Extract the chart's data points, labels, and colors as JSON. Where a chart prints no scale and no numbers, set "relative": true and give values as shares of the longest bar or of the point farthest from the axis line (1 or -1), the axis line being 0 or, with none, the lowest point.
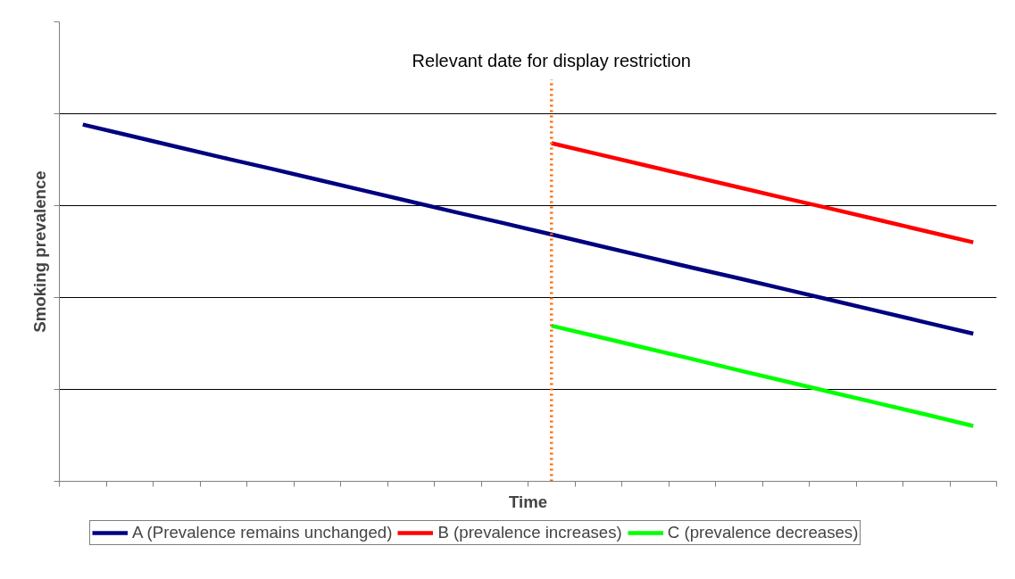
{
  "chart_data": {
    "type": "line",
    "relative": true,
    "xlabel": "Time",
    "ylabel": "Smoking prevalence",
    "categories": [
      null,
      null,
      null,
      null,
      null,
      null,
      null,
      null,
      null,
      null,
      null,
      null,
      null,
      null,
      null,
      null,
      null,
      null,
      null,
      null
    ],
    "series": [
      {
        "name": "A (Prevalence remains unchanged)",
        "color": "#000080",
        "values": [
          1,
          0.969,
          0.938,
          0.907,
          0.877,
          0.846,
          0.815,
          0.784,
          0.753,
          0.723,
          0.692,
          0.661,
          0.63,
          0.599,
          0.569,
          0.538,
          0.507,
          0.476,
          0.445,
          0.414
        ]
      },
      {
        "name": "B (prevalence increases)",
        "color": "#ff0000",
        "values": [
          null,
          null,
          null,
          null,
          null,
          null,
          null,
          null,
          null,
          null,
          0.948,
          0.917,
          0.886,
          0.855,
          0.824,
          0.793,
          0.763,
          0.732,
          0.701,
          0.67
        ]
      },
      {
        "name": "C (prevalence decreases)",
        "color": "#00ff00",
        "values": [
          null,
          null,
          null,
          null,
          null,
          null,
          null,
          null,
          null,
          null,
          0.436,
          0.405,
          0.374,
          0.343,
          0.311,
          0.28,
          0.249,
          0.218,
          0.187,
          0.155
        ]
      }
    ],
    "annotations": [
      "Relevant date for display restriction"
    ],
    "grid": "y",
    "legend": "bottom",
    "tick_labels": false,
    "marker": "none",
    "line_style": "solid"
  }
}
